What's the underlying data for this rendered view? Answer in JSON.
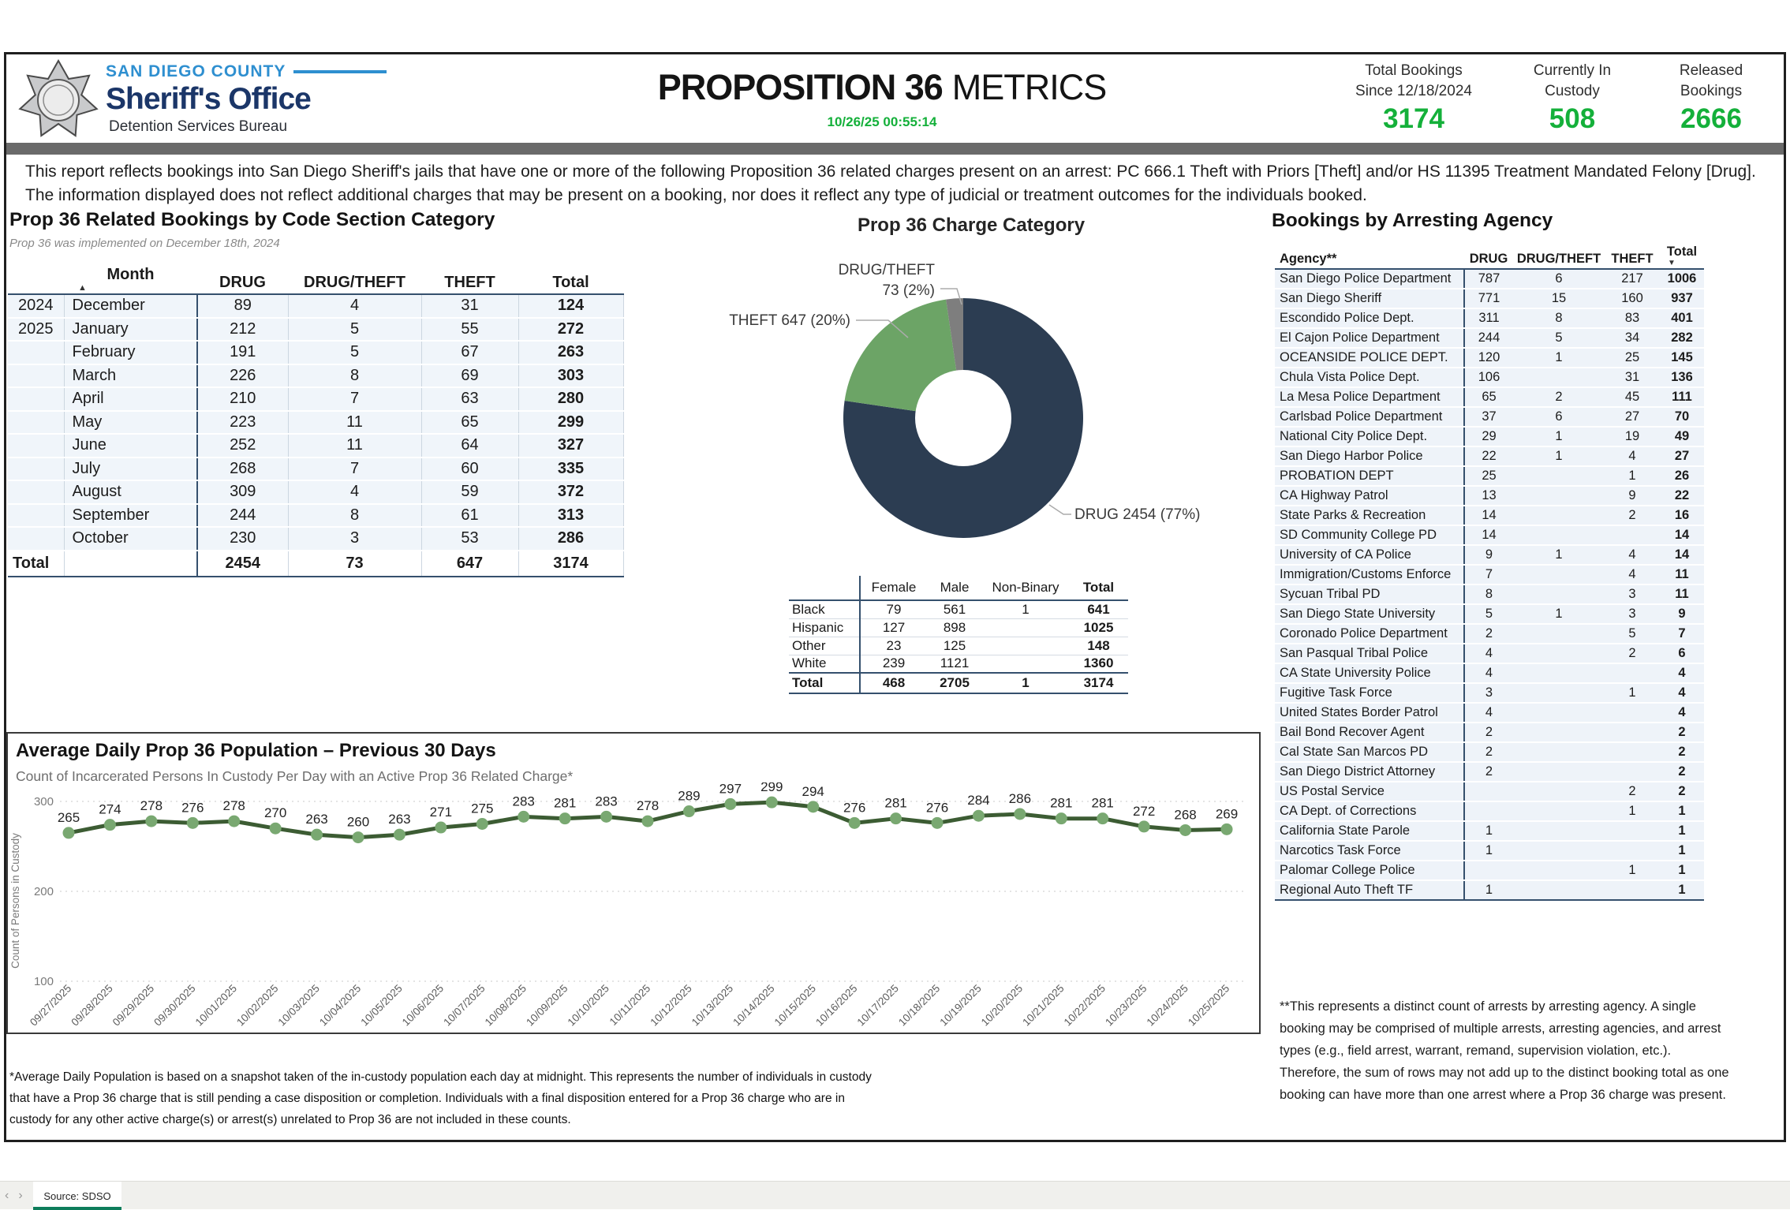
{
  "header": {
    "logo": {
      "county": "SAN DIEGO COUNTY",
      "office": "Sheriff's Office",
      "bureau": "Detention Services Bureau"
    },
    "title_bold": "PROPOSITION 36",
    "title_light": "METRICS",
    "timestamp": "10/26/25 00:55:14",
    "accent_green": "#14b03a",
    "stats": [
      {
        "label1": "Total Bookings",
        "label2": "Since 12/18/2024",
        "value": "3174"
      },
      {
        "label1": "Currently In",
        "label2": "Custody",
        "value": "508"
      },
      {
        "label1": "Released",
        "label2": "Bookings",
        "value": "2666"
      }
    ]
  },
  "description": "This report reflects bookings into San Diego Sheriff's jails that have one or more of the following Proposition 36 related charges present on an arrest: PC 666.1 Theft with Priors [Theft] and/or HS 11395 Treatment Mandated Felony [Drug]. The information displayed does not reflect additional charges that may be present on a booking, nor does it reflect any type of judicial or treatment outcomes for the individuals booked.",
  "monthly_table": {
    "title": "Prop 36 Related Bookings by Code Section Category",
    "subtitle": "Prop 36 was implemented on December 18th, 2024",
    "columns": [
      "",
      "Month",
      "DRUG",
      "DRUG/THEFT",
      "THEFT",
      "Total"
    ],
    "rows": [
      [
        "2024",
        "December",
        "89",
        "4",
        "31",
        "124"
      ],
      [
        "2025",
        "January",
        "212",
        "5",
        "55",
        "272"
      ],
      [
        "",
        "February",
        "191",
        "5",
        "67",
        "263"
      ],
      [
        "",
        "March",
        "226",
        "8",
        "69",
        "303"
      ],
      [
        "",
        "April",
        "210",
        "7",
        "63",
        "280"
      ],
      [
        "",
        "May",
        "223",
        "11",
        "65",
        "299"
      ],
      [
        "",
        "June",
        "252",
        "11",
        "64",
        "327"
      ],
      [
        "",
        "July",
        "268",
        "7",
        "60",
        "335"
      ],
      [
        "",
        "August",
        "309",
        "4",
        "59",
        "372"
      ],
      [
        "",
        "September",
        "244",
        "8",
        "61",
        "313"
      ],
      [
        "",
        "October",
        "230",
        "3",
        "53",
        "286"
      ]
    ],
    "total_row": [
      "Total",
      "",
      "2454",
      "73",
      "647",
      "3174"
    ]
  },
  "demographics_table": {
    "columns": [
      "",
      "Female",
      "Male",
      "Non-Binary",
      "Total"
    ],
    "rows": [
      [
        "Black",
        "79",
        "561",
        "1",
        "641"
      ],
      [
        "Hispanic",
        "127",
        "898",
        "",
        "1025"
      ],
      [
        "Other",
        "23",
        "125",
        "",
        "148"
      ],
      [
        "White",
        "239",
        "1121",
        "",
        "1360"
      ]
    ],
    "total_row": [
      "Total",
      "468",
      "2705",
      "1",
      "3174"
    ]
  },
  "agency_table": {
    "title": "Bookings by Arresting Agency",
    "columns": [
      "Agency**",
      "DRUG",
      "DRUG/THEFT",
      "THEFT",
      "Total"
    ],
    "rows": [
      [
        "San Diego Police Department",
        "787",
        "6",
        "217",
        "1006"
      ],
      [
        "San Diego Sheriff",
        "771",
        "15",
        "160",
        "937"
      ],
      [
        "Escondido Police Dept.",
        "311",
        "8",
        "83",
        "401"
      ],
      [
        "El Cajon Police Department",
        "244",
        "5",
        "34",
        "282"
      ],
      [
        "OCEANSIDE POLICE DEPT.",
        "120",
        "1",
        "25",
        "145"
      ],
      [
        "Chula Vista Police Dept.",
        "106",
        "",
        "31",
        "136"
      ],
      [
        "La Mesa Police Department",
        "65",
        "2",
        "45",
        "111"
      ],
      [
        "Carlsbad Police Department",
        "37",
        "6",
        "27",
        "70"
      ],
      [
        "National City Police Dept.",
        "29",
        "1",
        "19",
        "49"
      ],
      [
        "San Diego Harbor Police",
        "22",
        "1",
        "4",
        "27"
      ],
      [
        "PROBATION DEPT",
        "25",
        "",
        "1",
        "26"
      ],
      [
        "CA Highway Patrol",
        "13",
        "",
        "9",
        "22"
      ],
      [
        "State Parks & Recreation",
        "14",
        "",
        "2",
        "16"
      ],
      [
        "SD Community College PD",
        "14",
        "",
        "",
        "14"
      ],
      [
        "University of CA Police",
        "9",
        "1",
        "4",
        "14"
      ],
      [
        "Immigration/Customs Enforce",
        "7",
        "",
        "4",
        "11"
      ],
      [
        "Sycuan Tribal PD",
        "8",
        "",
        "3",
        "11"
      ],
      [
        "San Diego State University",
        "5",
        "1",
        "3",
        "9"
      ],
      [
        "Coronado Police Department",
        "2",
        "",
        "5",
        "7"
      ],
      [
        "San Pasqual Tribal Police",
        "4",
        "",
        "2",
        "6"
      ],
      [
        "CA State University Police",
        "4",
        "",
        "",
        "4"
      ],
      [
        "Fugitive Task Force",
        "3",
        "",
        "1",
        "4"
      ],
      [
        "United States Border Patrol",
        "4",
        "",
        "",
        "4"
      ],
      [
        "Bail Bond Recover Agent",
        "2",
        "",
        "",
        "2"
      ],
      [
        "Cal State San Marcos PD",
        "2",
        "",
        "",
        "2"
      ],
      [
        "San Diego District Attorney",
        "2",
        "",
        "",
        "2"
      ],
      [
        "US Postal Service",
        "",
        "",
        "2",
        "2"
      ],
      [
        "CA Dept. of Corrections",
        "",
        "",
        "1",
        "1"
      ],
      [
        "California State Parole",
        "1",
        "",
        "",
        "1"
      ],
      [
        "Narcotics Task Force",
        "1",
        "",
        "",
        "1"
      ],
      [
        "Palomar College Police",
        "",
        "",
        "1",
        "1"
      ],
      [
        "Regional Auto Theft TF",
        "1",
        "",
        "",
        "1"
      ]
    ]
  },
  "chart_data": [
    {
      "type": "pie",
      "title": "Prop 36 Charge Category",
      "total": 3174,
      "slices": [
        {
          "label": "DRUG",
          "value": 2454,
          "pct": "77%",
          "color": "#2c3d52"
        },
        {
          "label": "THEFT",
          "value": 647,
          "pct": "20%",
          "color": "#6ca466"
        },
        {
          "label": "DRUG/THEFT",
          "value": 73,
          "pct": "2%",
          "color": "#7e7e7e"
        }
      ]
    },
    {
      "type": "line",
      "title": "Average Daily Prop 36 Population – Previous 30 Days",
      "subtitle": "Count of Incarcerated Persons In Custody Per Day with an Active Prop 36 Related Charge*",
      "ylabel": "Count of Persons in Custody",
      "yticks": [
        100,
        200,
        300
      ],
      "ylim": [
        80,
        320
      ],
      "grid": "dotted-horizontal",
      "line_color": "#3c5c33",
      "marker_color": "#79a871",
      "x": [
        "09/27/2025",
        "09/28/2025",
        "09/29/2025",
        "09/30/2025",
        "10/01/2025",
        "10/02/2025",
        "10/03/2025",
        "10/04/2025",
        "10/05/2025",
        "10/06/2025",
        "10/07/2025",
        "10/08/2025",
        "10/09/2025",
        "10/10/2025",
        "10/11/2025",
        "10/12/2025",
        "10/13/2025",
        "10/14/2025",
        "10/15/2025",
        "10/16/2025",
        "10/17/2025",
        "10/18/2025",
        "10/19/2025",
        "10/20/2025",
        "10/21/2025",
        "10/22/2025",
        "10/23/2025",
        "10/24/2025",
        "10/25/2025"
      ],
      "values": [
        265,
        274,
        278,
        276,
        278,
        270,
        263,
        260,
        263,
        271,
        275,
        283,
        281,
        283,
        278,
        289,
        297,
        299,
        294,
        276,
        281,
        276,
        284,
        286,
        281,
        281,
        272,
        268,
        269
      ]
    }
  ],
  "footnotes": {
    "population": "*Average Daily Population is based on a snapshot taken of the in-custody population each day at midnight. This represents the number of individuals in custody that have a Prop 36 charge that is still pending a case disposition or completion. Individuals with a final disposition entered for a Prop 36 charge who are in custody for any other active charge(s) or arrest(s) unrelated to Prop 36 are not included in these counts.",
    "agency": "**This represents a distinct count of arrests by arresting agency. A single booking may be comprised of multiple arrests, arresting agencies, and arrest types (e.g., field arrest, warrant, remand, supervision violation, etc.). Therefore, the sum of rows may not add up to the distinct booking total as one booking can have more than one arrest where a Prop 36 charge was present."
  },
  "bottom_bar": {
    "tab_label": "Source: SDSO",
    "prev_icon": "‹",
    "next_icon": "›"
  },
  "icons": {
    "sort_asc": "▲",
    "sort_desc": "▼"
  }
}
